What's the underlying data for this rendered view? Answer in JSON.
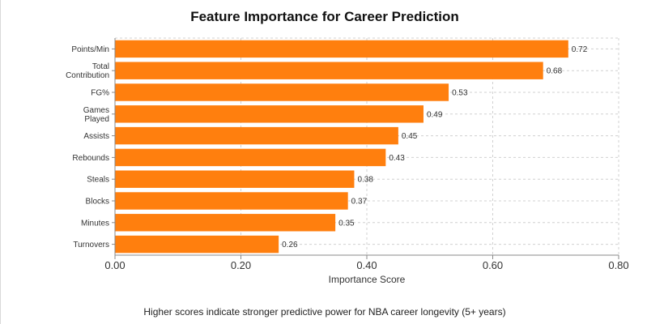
{
  "chart_data": {
    "type": "bar",
    "orientation": "horizontal",
    "title": "Feature Importance for Career Prediction",
    "xlabel": "Importance Score",
    "ylabel": "",
    "categories": [
      [
        "Points/Min"
      ],
      [
        "Total",
        "Contribution"
      ],
      [
        "FG%"
      ],
      [
        "Games",
        "Played"
      ],
      [
        "Assists"
      ],
      [
        "Rebounds"
      ],
      [
        "Steals"
      ],
      [
        "Blocks"
      ],
      [
        "Minutes"
      ],
      [
        "Turnovers"
      ]
    ],
    "values": [
      0.72,
      0.68,
      0.53,
      0.49,
      0.45,
      0.43,
      0.38,
      0.37,
      0.35,
      0.26
    ],
    "value_labels": [
      "0.72",
      "0.68",
      "0.53",
      "0.49",
      "0.45",
      "0.43",
      "0.38",
      "0.37",
      "0.35",
      "0.26"
    ],
    "xlim": [
      0,
      0.8
    ],
    "xticks": [
      0,
      0.2,
      0.4,
      0.6,
      0.8
    ],
    "xtick_labels": [
      "0.00",
      "0.20",
      "0.40",
      "0.60",
      "0.80"
    ],
    "bar_color": "#ff7f0e",
    "grid": true,
    "caption": "Higher scores indicate stronger predictive power for NBA career longevity (5+ years)"
  }
}
